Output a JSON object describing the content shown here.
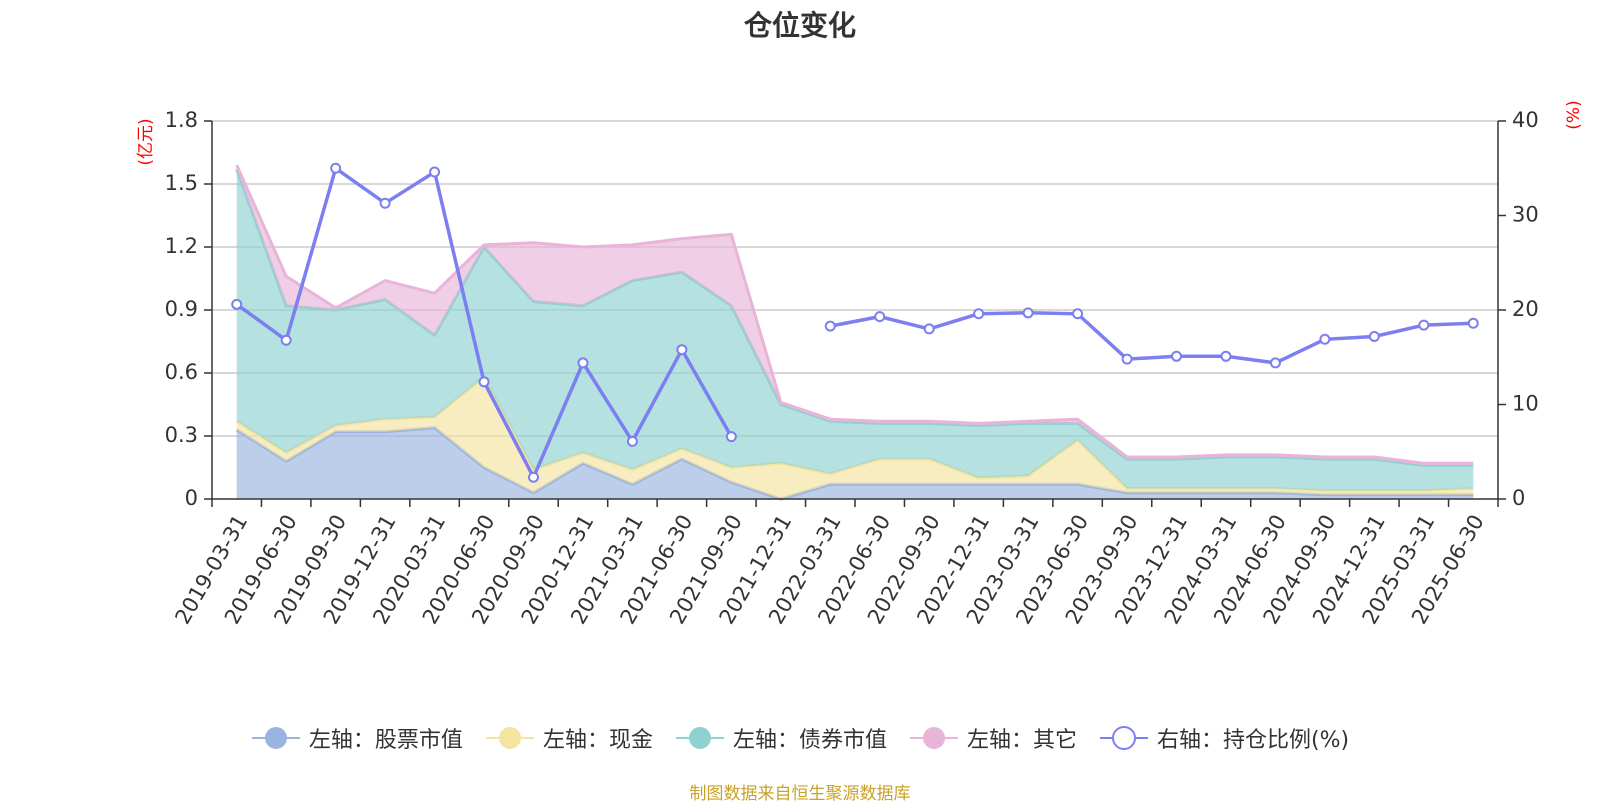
{
  "chart_data": {
    "type": "area",
    "title": "仓位变化",
    "x": [
      "2019-03-31",
      "2019-06-30",
      "2019-09-30",
      "2019-12-31",
      "2020-03-31",
      "2020-06-30",
      "2020-09-30",
      "2020-12-31",
      "2021-03-31",
      "2021-06-30",
      "2021-09-30",
      "2021-12-31",
      "2022-03-31",
      "2022-06-30",
      "2022-09-30",
      "2022-12-31",
      "2023-03-31",
      "2023-06-30",
      "2023-09-30",
      "2023-12-31",
      "2024-03-31",
      "2024-06-30",
      "2024-09-30",
      "2024-12-31",
      "2025-03-31",
      "2025-06-30"
    ],
    "left_axis": {
      "unit": "(亿元)",
      "ylim": [
        0,
        1.8
      ],
      "ticks": [
        "0",
        "0.3",
        "0.6",
        "0.9",
        "1.2",
        "1.5",
        "1.8"
      ]
    },
    "right_axis": {
      "unit": "(%)",
      "ylim": [
        0,
        40
      ],
      "ticks": [
        "0",
        "10",
        "20",
        "30",
        "40"
      ]
    },
    "stacked": true,
    "series": [
      {
        "name": "左轴：股票市值",
        "axis": "left",
        "color": "#9ab4e0",
        "values": [
          0.33,
          0.18,
          0.32,
          0.32,
          0.34,
          0.15,
          0.03,
          0.17,
          0.07,
          0.19,
          0.08,
          null,
          0.07,
          0.07,
          0.07,
          0.07,
          0.07,
          0.07,
          0.03,
          0.03,
          0.03,
          0.03,
          0.02,
          0.02,
          0.02,
          0.02
        ]
      },
      {
        "name": "左轴：现金",
        "axis": "left",
        "color": "#f5e3a0",
        "values": [
          0.04,
          0.04,
          0.03,
          0.06,
          0.05,
          0.43,
          0.11,
          0.05,
          0.07,
          0.05,
          0.07,
          0.17,
          0.05,
          0.12,
          0.12,
          0.03,
          0.04,
          0.21,
          0.02,
          0.02,
          0.02,
          0.02,
          0.02,
          0.02,
          0.02,
          0.03
        ]
      },
      {
        "name": "左轴：债券市值",
        "axis": "left",
        "color": "#8fd1d1",
        "values": [
          1.2,
          0.7,
          0.55,
          0.57,
          0.39,
          0.62,
          0.8,
          0.7,
          0.9,
          0.84,
          0.77,
          0.28,
          0.25,
          0.17,
          0.17,
          0.25,
          0.25,
          0.08,
          0.14,
          0.14,
          0.15,
          0.15,
          0.15,
          0.15,
          0.12,
          0.11
        ]
      },
      {
        "name": "左轴：其它",
        "axis": "left",
        "color": "#e8b4d8",
        "values": [
          0.02,
          0.14,
          0.01,
          0.09,
          0.2,
          0.01,
          0.28,
          0.28,
          0.17,
          0.16,
          0.34,
          0.01,
          0.01,
          0.01,
          0.01,
          0.01,
          0.01,
          0.02,
          0.01,
          0.01,
          0.01,
          0.01,
          0.01,
          0.01,
          0.01,
          0.01
        ]
      },
      {
        "name": "右轴：持仓比例(%)",
        "axis": "right",
        "type": "line",
        "color": "#7b7ff0",
        "values": [
          20.6,
          16.8,
          35.0,
          31.3,
          34.6,
          12.4,
          2.3,
          14.4,
          6.1,
          15.8,
          6.6,
          null,
          18.3,
          19.3,
          18.0,
          19.6,
          19.7,
          19.6,
          14.8,
          15.1,
          15.1,
          14.4,
          16.9,
          17.2,
          18.4,
          18.6
        ]
      }
    ]
  },
  "legend": [
    {
      "label": "左轴：股票市值",
      "color": "#9ab4e0",
      "marker": "filled"
    },
    {
      "label": "左轴：现金",
      "color": "#f5e3a0",
      "marker": "filled"
    },
    {
      "label": "左轴：债券市值",
      "color": "#8fd1d1",
      "marker": "filled"
    },
    {
      "label": "左轴：其它",
      "color": "#e8b4d8",
      "marker": "filled"
    },
    {
      "label": "右轴：持仓比例(%)",
      "color": "#7b7ff0",
      "marker": "hollow"
    }
  ],
  "source_note": "制图数据来自恒生聚源数据库"
}
